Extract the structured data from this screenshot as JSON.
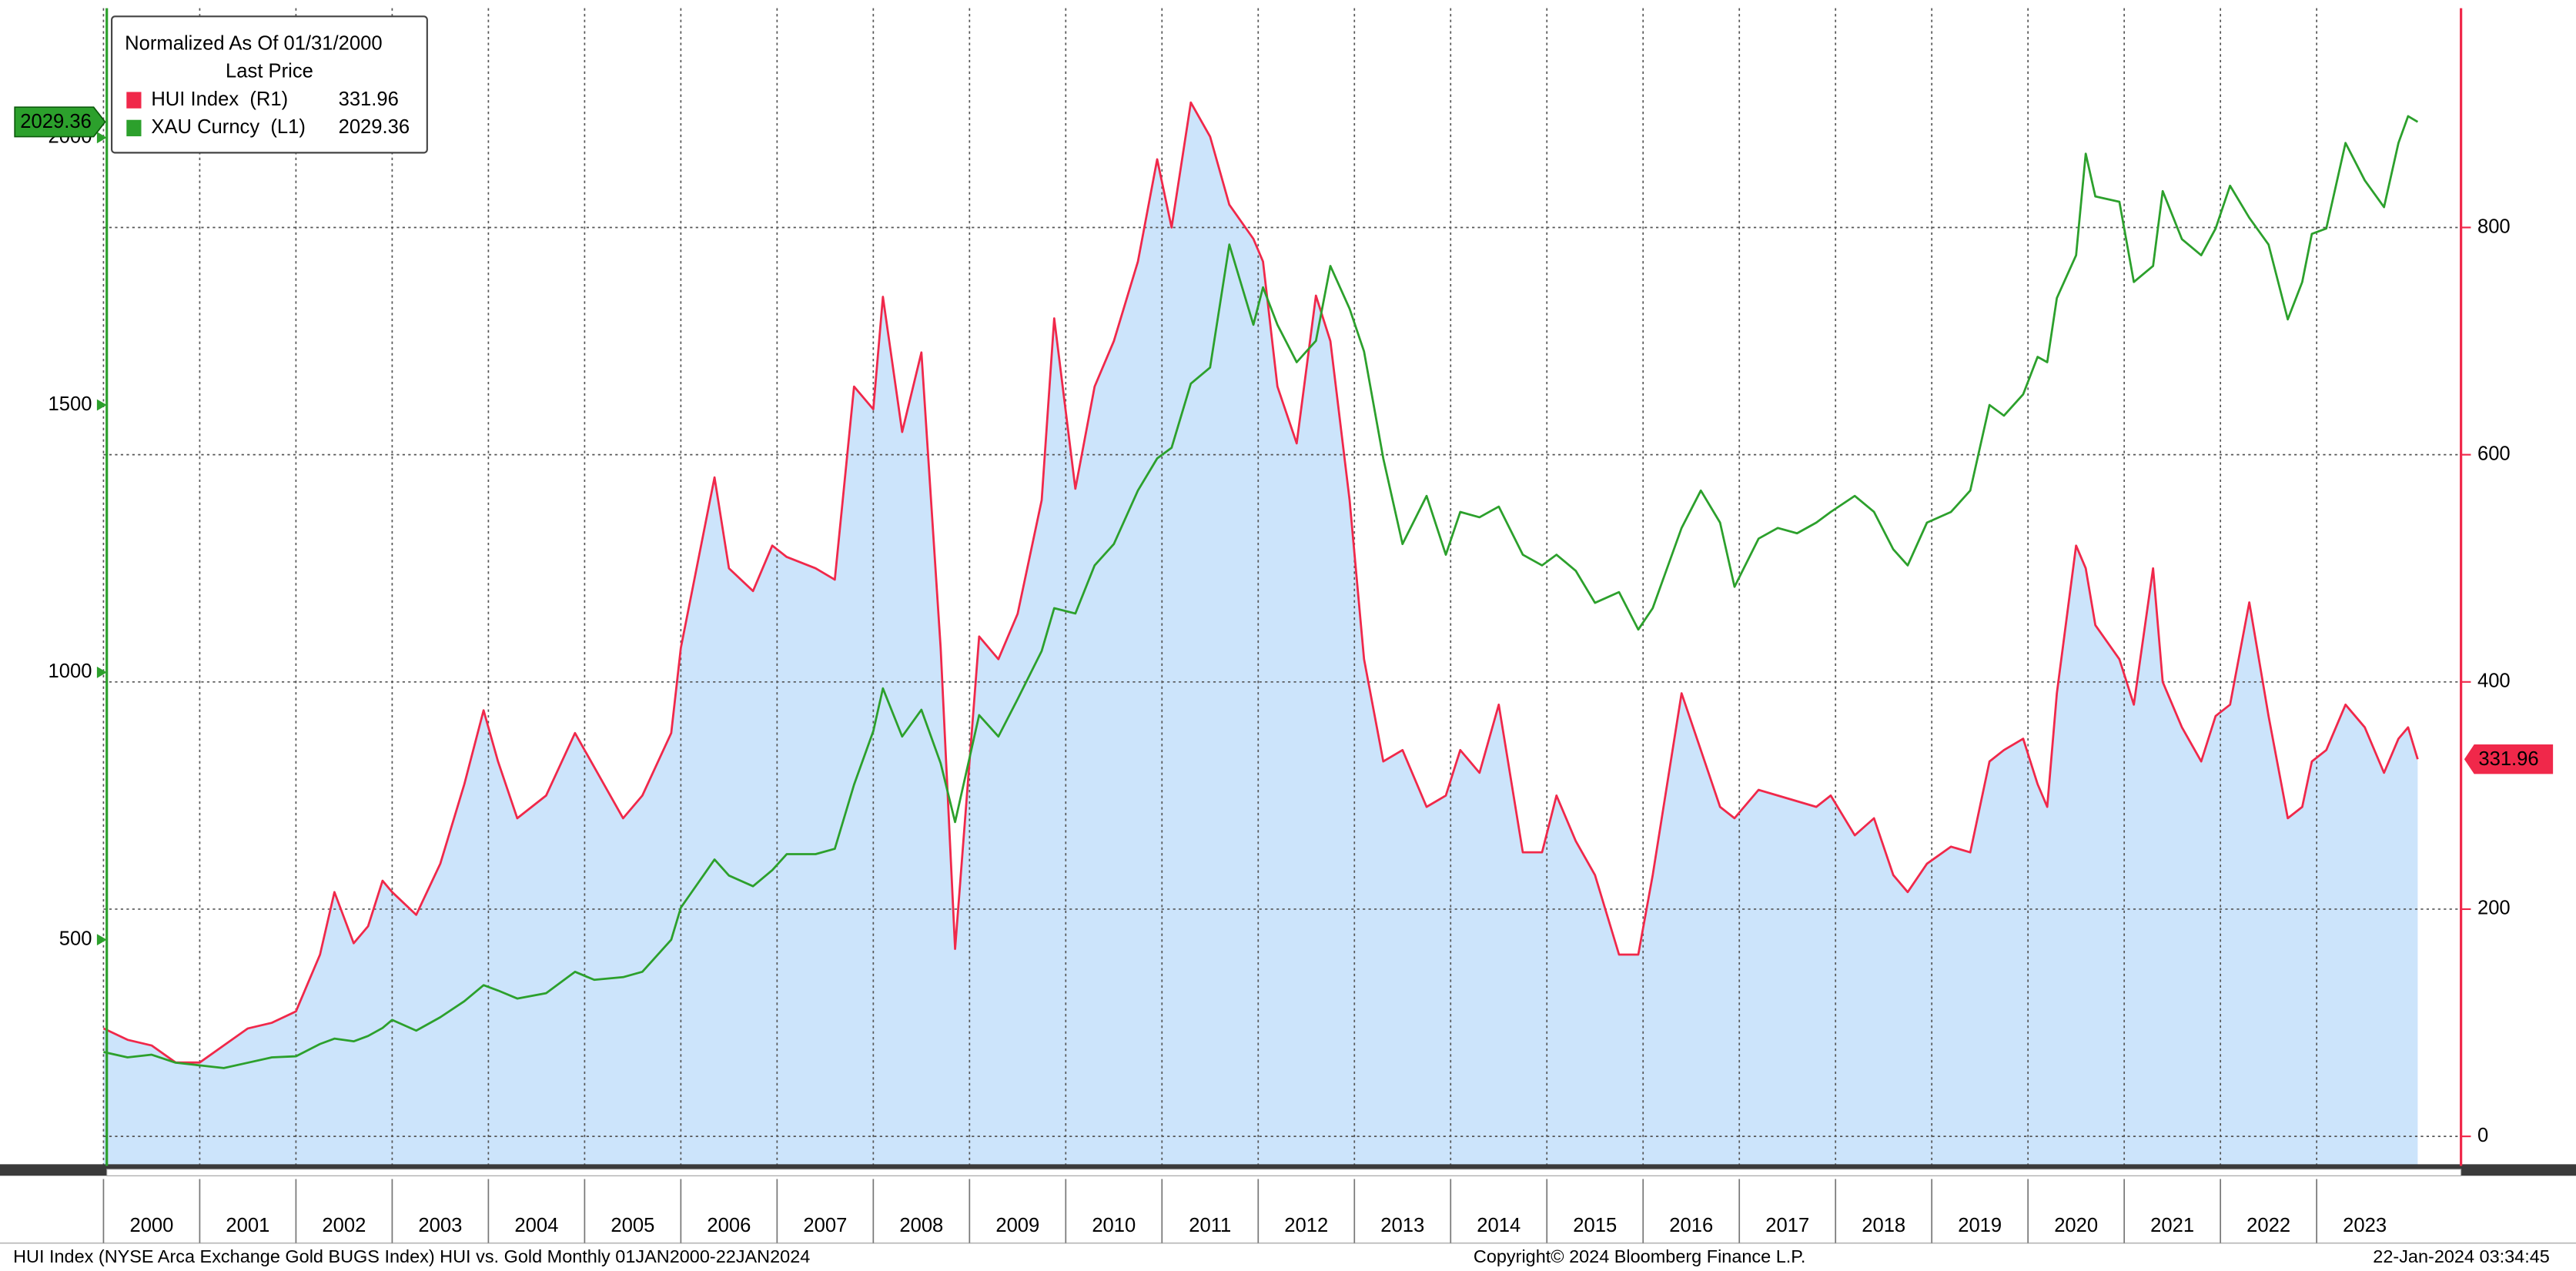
{
  "chart_data": {
    "type": "line",
    "legend_title": "Normalized As Of 01/31/2000",
    "legend_subtitle": "Last Price",
    "x": [
      2000.0,
      2000.25,
      2000.5,
      2000.75,
      2001.0,
      2001.25,
      2001.5,
      2001.75,
      2002.0,
      2002.25,
      2002.4,
      2002.6,
      2002.75,
      2002.9,
      2003.0,
      2003.25,
      2003.5,
      2003.75,
      2003.95,
      2004.1,
      2004.3,
      2004.6,
      2004.9,
      2005.1,
      2005.4,
      2005.6,
      2005.9,
      2006.0,
      2006.35,
      2006.5,
      2006.75,
      2006.95,
      2007.1,
      2007.4,
      2007.6,
      2007.8,
      2008.0,
      2008.1,
      2008.3,
      2008.5,
      2008.7,
      2008.85,
      2009.1,
      2009.3,
      2009.5,
      2009.75,
      2009.88,
      2010.1,
      2010.3,
      2010.5,
      2010.75,
      2010.95,
      2011.1,
      2011.3,
      2011.5,
      2011.7,
      2011.95,
      2012.05,
      2012.2,
      2012.4,
      2012.6,
      2012.75,
      2012.95,
      2013.1,
      2013.3,
      2013.5,
      2013.75,
      2013.95,
      2014.1,
      2014.3,
      2014.5,
      2014.75,
      2014.95,
      2015.1,
      2015.3,
      2015.5,
      2015.75,
      2015.95,
      2016.1,
      2016.4,
      2016.6,
      2016.8,
      2016.95,
      2017.2,
      2017.4,
      2017.6,
      2017.8,
      2017.95,
      2018.2,
      2018.4,
      2018.6,
      2018.75,
      2018.95,
      2019.2,
      2019.4,
      2019.6,
      2019.75,
      2019.95,
      2020.1,
      2020.2,
      2020.3,
      2020.5,
      2020.6,
      2020.7,
      2020.95,
      2021.1,
      2021.3,
      2021.4,
      2021.6,
      2021.8,
      2021.95,
      2022.1,
      2022.3,
      2022.5,
      2022.7,
      2022.85,
      2022.95,
      2023.1,
      2023.3,
      2023.5,
      2023.7,
      2023.85,
      2023.95,
      2024.05
    ],
    "xlim": [
      2000,
      2024.5
    ],
    "xticks": [
      2000,
      2001,
      2002,
      2003,
      2004,
      2005,
      2006,
      2007,
      2008,
      2009,
      2010,
      2011,
      2012,
      2013,
      2014,
      2015,
      2016,
      2017,
      2018,
      2019,
      2020,
      2021,
      2022,
      2023
    ],
    "ylim": [
      77,
      2242
    ],
    "yticks": [
      500,
      1000,
      1500,
      2000
    ],
    "y2lim": [
      -26,
      993
    ],
    "y2ticks": [
      0,
      200,
      400,
      600,
      800
    ],
    "grid": true,
    "series": [
      {
        "name": "HUI Index  (R1)",
        "color": "#f0284a",
        "fill": "#cce4fb",
        "axis": "y2",
        "values": [
          95,
          85,
          80,
          65,
          65,
          80,
          95,
          100,
          110,
          160,
          215,
          170,
          185,
          225,
          215,
          195,
          240,
          310,
          375,
          330,
          280,
          300,
          355,
          325,
          280,
          300,
          355,
          430,
          580,
          500,
          480,
          520,
          510,
          500,
          490,
          660,
          640,
          739,
          620,
          690,
          430,
          165,
          440,
          420,
          460,
          560,
          720,
          570,
          660,
          700,
          770,
          860,
          800,
          910,
          880,
          820,
          790,
          770,
          660,
          610,
          740,
          700,
          560,
          420,
          330,
          340,
          290,
          300,
          340,
          320,
          380,
          250,
          250,
          300,
          260,
          230,
          160,
          160,
          230,
          390,
          340,
          290,
          280,
          305,
          300,
          295,
          290,
          300,
          265,
          280,
          230,
          215,
          240,
          255,
          250,
          330,
          340,
          350,
          310,
          290,
          390,
          520,
          500,
          450,
          420,
          380,
          500,
          400,
          360,
          330,
          370,
          380,
          470,
          370,
          280,
          290,
          330,
          340,
          380,
          360,
          320,
          350,
          360,
          331.96
        ]
      },
      {
        "name": "XAU Curncy  (L1)",
        "color": "#2ca02c",
        "axis": "y",
        "values": [
          290,
          280,
          285,
          270,
          265,
          260,
          270,
          280,
          282,
          305,
          315,
          310,
          320,
          335,
          350,
          330,
          355,
          385,
          415,
          405,
          390,
          400,
          440,
          425,
          430,
          440,
          500,
          560,
          650,
          620,
          600,
          630,
          660,
          660,
          670,
          790,
          890,
          970,
          880,
          930,
          830,
          720,
          920,
          880,
          950,
          1040,
          1120,
          1110,
          1200,
          1240,
          1340,
          1400,
          1420,
          1540,
          1570,
          1800,
          1650,
          1720,
          1650,
          1580,
          1620,
          1760,
          1680,
          1600,
          1400,
          1240,
          1330,
          1220,
          1300,
          1290,
          1310,
          1220,
          1200,
          1220,
          1190,
          1130,
          1150,
          1080,
          1120,
          1270,
          1340,
          1280,
          1160,
          1250,
          1270,
          1260,
          1280,
          1300,
          1330,
          1300,
          1230,
          1200,
          1280,
          1300,
          1340,
          1500,
          1480,
          1520,
          1590,
          1580,
          1700,
          1780,
          1970,
          1890,
          1880,
          1730,
          1760,
          1900,
          1810,
          1780,
          1830,
          1910,
          1850,
          1800,
          1660,
          1730,
          1820,
          1830,
          1990,
          1920,
          1870,
          1990,
          2040,
          2029.36
        ]
      }
    ]
  },
  "footer": {
    "left": "HUI Index (NYSE Arca Exchange Gold BUGS Index) HUI vs. Gold  Monthly 01JAN2000-22JAN2024",
    "center": "Copyright© 2024 Bloomberg Finance L.P.",
    "right": "22-Jan-2024 03:34:45"
  }
}
